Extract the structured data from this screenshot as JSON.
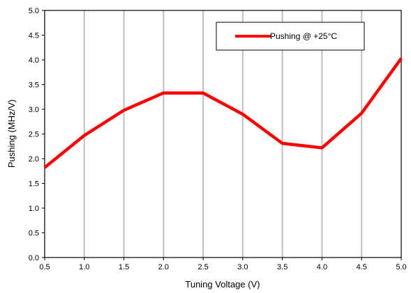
{
  "chart_data": {
    "type": "line",
    "x": [
      0.5,
      1.0,
      1.5,
      2.0,
      2.5,
      3.0,
      3.5,
      4.0,
      4.5,
      5.0
    ],
    "series": [
      {
        "name": "Pushing @ +25°C",
        "color": "#ff0000",
        "values": [
          1.82,
          2.47,
          2.98,
          3.33,
          3.33,
          2.9,
          2.31,
          2.22,
          2.92,
          4.03
        ]
      }
    ],
    "xlabel": "Tuning Voltage (V)",
    "ylabel": "Pushing (MHz/V)",
    "xlim": [
      0.5,
      5.0
    ],
    "ylim": [
      0.0,
      5.0
    ],
    "x_ticks": [
      "0.5",
      "1.0",
      "1.5",
      "2.0",
      "2.5",
      "3.0",
      "3.5",
      "4.0",
      "4.5",
      "5.0"
    ],
    "y_ticks": [
      "0.0",
      "0.5",
      "1.0",
      "1.5",
      "2.0",
      "2.5",
      "3.0",
      "3.5",
      "4.0",
      "4.5",
      "5.0"
    ],
    "grid": "vertical",
    "legend_position": "top-right",
    "colors": {
      "gridline": "#c0c0c0",
      "axis": "#000000",
      "background": "#ffffff"
    }
  }
}
